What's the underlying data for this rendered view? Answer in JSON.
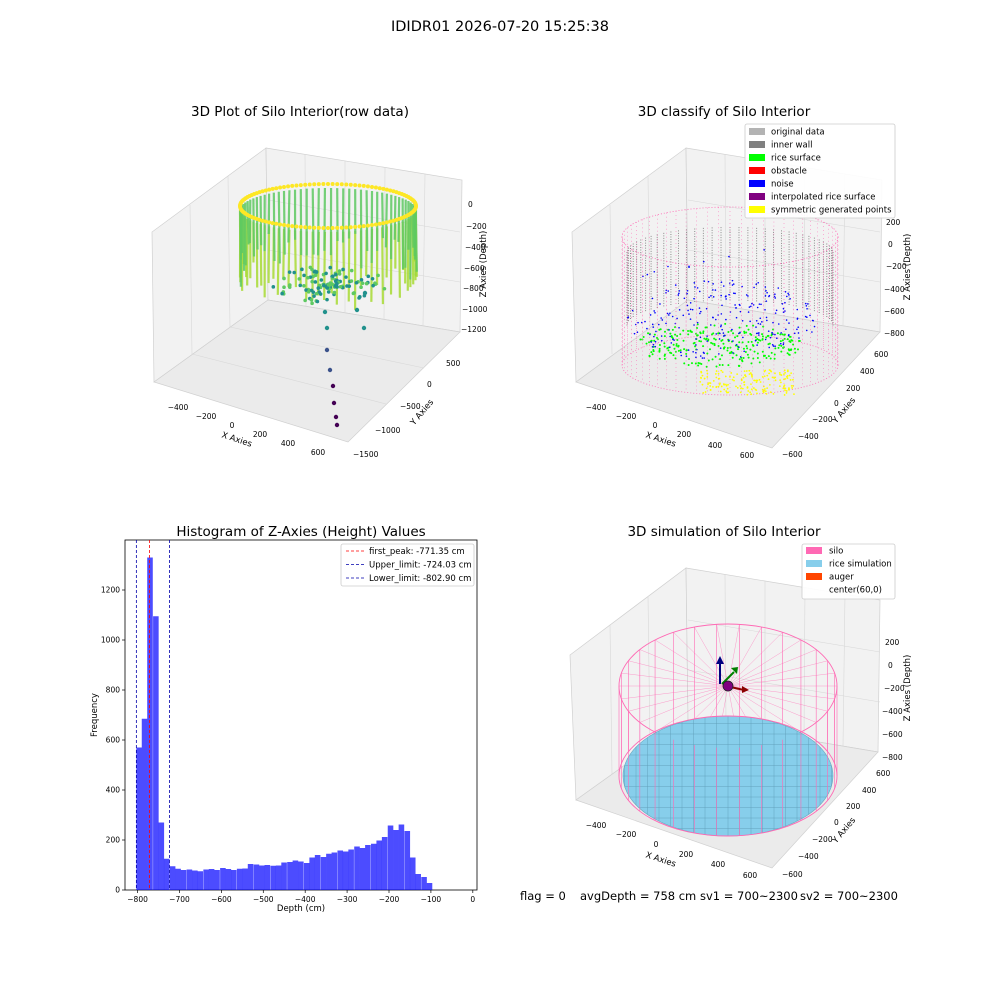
{
  "suptitle": "IDIDR01 2026-07-20 15:25:38",
  "panels": {
    "raw": {
      "title": "3D Plot of Silo Interior(row data)",
      "xlabel": "X Axies",
      "ylabel": "Y Axies",
      "zlabel": "Z Axies (Depth)",
      "xticks": [
        "−400",
        "−200",
        "0",
        "200",
        "400",
        "600"
      ],
      "yticks": [
        "500",
        "0",
        "−500",
        "−1000",
        "−1500"
      ],
      "zticks": [
        "0",
        "−200",
        "−400",
        "−600",
        "−800",
        "−1000",
        "−1200"
      ]
    },
    "classify": {
      "title": "3D classify of Silo Interior",
      "xlabel": "X Axies",
      "ylabel": "Y Axies",
      "zlabel": "Z Axies (Depth)",
      "xticks": [
        "−400",
        "−200",
        "0",
        "200",
        "400",
        "600"
      ],
      "yticks": [
        "600",
        "400",
        "200",
        "0",
        "−200",
        "−400",
        "−600"
      ],
      "zticks": [
        "200",
        "0",
        "−200",
        "−400",
        "−600",
        "−800"
      ],
      "legend": [
        {
          "label": "original data",
          "color": "#b3b3b3"
        },
        {
          "label": "inner wall",
          "color": "#808080"
        },
        {
          "label": "rice surface",
          "color": "#00ff00"
        },
        {
          "label": "obstacle",
          "color": "#ff0000"
        },
        {
          "label": "noise",
          "color": "#0000ff"
        },
        {
          "label": "interpolated rice surface",
          "color": "#800080"
        },
        {
          "label": "symmetric generated points",
          "color": "#ffff00"
        }
      ]
    },
    "simulation": {
      "title": "3D simulation of Silo Interior",
      "xlabel": "X Axies",
      "ylabel": "Y Axies",
      "zlabel": "Z Axies (Depth)",
      "xticks": [
        "−400",
        "−200",
        "0",
        "200",
        "400",
        "600"
      ],
      "yticks": [
        "600",
        "400",
        "200",
        "0",
        "−200",
        "−400",
        "−600"
      ],
      "zticks": [
        "200",
        "0",
        "−200",
        "−400",
        "−600",
        "−800"
      ],
      "legend": [
        {
          "label": "silo",
          "color": "#ff69b4"
        },
        {
          "label": "rice simulation",
          "color": "#87ceeb"
        },
        {
          "label": "auger",
          "color": "#ff4500"
        },
        {
          "label": "center(60,0)",
          "color": ""
        }
      ]
    }
  },
  "chart_data": {
    "type": "bar",
    "title": "Histogram of Z-Axies (Height) Values",
    "xlabel": "Depth (cm)",
    "ylabel": "Frequency",
    "xlim": [
      -830,
      10
    ],
    "ylim": [
      0,
      1400
    ],
    "xticks": [
      -800,
      -700,
      -600,
      -500,
      -400,
      -300,
      -200,
      -100,
      0
    ],
    "yticks": [
      0,
      200,
      400,
      600,
      800,
      1000,
      1200
    ],
    "bar_color": "#0000ff",
    "bin_width": 13.3,
    "bins": [
      {
        "x0": -803,
        "count": 570
      },
      {
        "x0": -790,
        "count": 685
      },
      {
        "x0": -777,
        "count": 1330
      },
      {
        "x0": -763,
        "count": 1095
      },
      {
        "x0": -750,
        "count": 270
      },
      {
        "x0": -737,
        "count": 125
      },
      {
        "x0": -723,
        "count": 95
      },
      {
        "x0": -710,
        "count": 85
      },
      {
        "x0": -697,
        "count": 80
      },
      {
        "x0": -683,
        "count": 82
      },
      {
        "x0": -670,
        "count": 78
      },
      {
        "x0": -657,
        "count": 75
      },
      {
        "x0": -643,
        "count": 82
      },
      {
        "x0": -630,
        "count": 84
      },
      {
        "x0": -617,
        "count": 80
      },
      {
        "x0": -603,
        "count": 88
      },
      {
        "x0": -590,
        "count": 84
      },
      {
        "x0": -577,
        "count": 80
      },
      {
        "x0": -563,
        "count": 85
      },
      {
        "x0": -550,
        "count": 86
      },
      {
        "x0": -537,
        "count": 104
      },
      {
        "x0": -523,
        "count": 102
      },
      {
        "x0": -510,
        "count": 98
      },
      {
        "x0": -497,
        "count": 100
      },
      {
        "x0": -483,
        "count": 97
      },
      {
        "x0": -470,
        "count": 98
      },
      {
        "x0": -457,
        "count": 110
      },
      {
        "x0": -443,
        "count": 112
      },
      {
        "x0": -430,
        "count": 118
      },
      {
        "x0": -417,
        "count": 114
      },
      {
        "x0": -403,
        "count": 108
      },
      {
        "x0": -390,
        "count": 130
      },
      {
        "x0": -377,
        "count": 140
      },
      {
        "x0": -363,
        "count": 132
      },
      {
        "x0": -350,
        "count": 145
      },
      {
        "x0": -337,
        "count": 150
      },
      {
        "x0": -323,
        "count": 158
      },
      {
        "x0": -310,
        "count": 154
      },
      {
        "x0": -297,
        "count": 162
      },
      {
        "x0": -283,
        "count": 174
      },
      {
        "x0": -270,
        "count": 168
      },
      {
        "x0": -257,
        "count": 180
      },
      {
        "x0": -243,
        "count": 185
      },
      {
        "x0": -230,
        "count": 198
      },
      {
        "x0": -217,
        "count": 212
      },
      {
        "x0": -203,
        "count": 258
      },
      {
        "x0": -190,
        "count": 240
      },
      {
        "x0": -177,
        "count": 262
      },
      {
        "x0": -163,
        "count": 236
      },
      {
        "x0": -150,
        "count": 130
      },
      {
        "x0": -137,
        "count": 64
      },
      {
        "x0": -123,
        "count": 52
      },
      {
        "x0": -110,
        "count": 28
      }
    ],
    "vlines": [
      {
        "label": "first_peak: -771.35 cm",
        "x": -771.35,
        "color": "#ff0000"
      },
      {
        "label": "Upper_limit: -724.03 cm",
        "x": -724.03,
        "color": "#0000aa"
      },
      {
        "label": "Lower_limit: -802.90 cm",
        "x": -802.9,
        "color": "#0000aa"
      }
    ],
    "legend_position": "top-right"
  },
  "footer": {
    "flag": "flag = 0",
    "avg": "avgDepth = 758 cm",
    "sv1": "sv1 = 700~2300",
    "sv2": "sv2 = 700~2300"
  }
}
